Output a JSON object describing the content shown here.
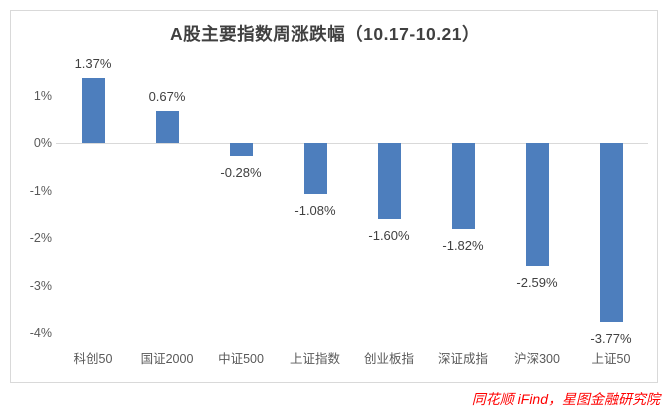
{
  "chart_data": {
    "type": "bar",
    "title": "A股主要指数周涨跌幅（10.17-10.21）",
    "categories": [
      "科创50",
      "国证2000",
      "中证500",
      "上证指数",
      "创业板指",
      "深证成指",
      "沪深300",
      "上证50"
    ],
    "values": [
      1.37,
      0.67,
      -0.28,
      -1.08,
      -1.6,
      -1.82,
      -2.59,
      -3.77
    ],
    "value_labels": [
      "1.37%",
      "0.67%",
      "-0.28%",
      "-1.08%",
      "-1.60%",
      "-1.82%",
      "-2.59%",
      "-3.77%"
    ],
    "xlabel": "",
    "ylabel": "",
    "yticks": [
      {
        "label": "1%",
        "value": 1
      },
      {
        "label": "0%",
        "value": 0
      },
      {
        "label": "-1%",
        "value": -1
      },
      {
        "label": "-2%",
        "value": -2
      },
      {
        "label": "-3%",
        "value": -3
      },
      {
        "label": "-4%",
        "value": -4
      }
    ],
    "ylim": [
      -4.2,
      1.6
    ],
    "grid": false,
    "legend": false
  },
  "colors": {
    "bar": "#4d7ebd",
    "axis_line": "#d9d9d9",
    "frame_border": "#d9d9d9",
    "title_text": "#404040",
    "value_label_text": "#404040",
    "axis_label_text": "#595959",
    "source_text": "#ff0000"
  },
  "source": {
    "text": "同花顺 iFind，星图金融研究院"
  }
}
